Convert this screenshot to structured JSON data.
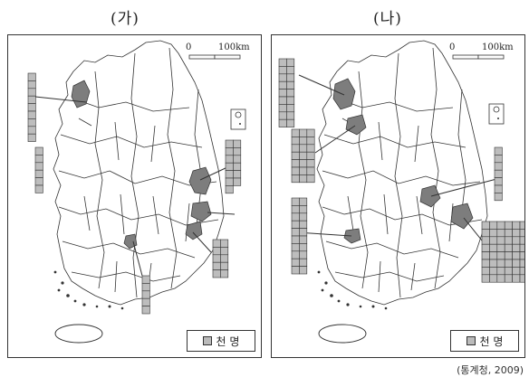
{
  "panels": [
    {
      "label": "(가)",
      "scale": {
        "zero": "0",
        "distance": "100km"
      },
      "legend": "천 명",
      "blocks": [
        {
          "cols": 1,
          "count": 9
        },
        {
          "cols": 2,
          "count": 13
        },
        {
          "cols": 1,
          "count": 6
        },
        {
          "cols": 2,
          "count": 10
        },
        {
          "cols": 1,
          "count": 5
        }
      ]
    },
    {
      "label": "(나)",
      "scale": {
        "zero": "0",
        "distance": "100km"
      },
      "legend": "천 명",
      "blocks": [
        {
          "cols": 2,
          "count": 18
        },
        {
          "cols": 3,
          "count": 21
        },
        {
          "cols": 2,
          "count": 20
        },
        {
          "cols": 1,
          "count": 7
        },
        {
          "cols": 7,
          "count": 56
        }
      ]
    }
  ],
  "colors": {
    "region": "#7d7d7d",
    "square": "#bdbdbd"
  },
  "source": "(통계청, 2009)"
}
